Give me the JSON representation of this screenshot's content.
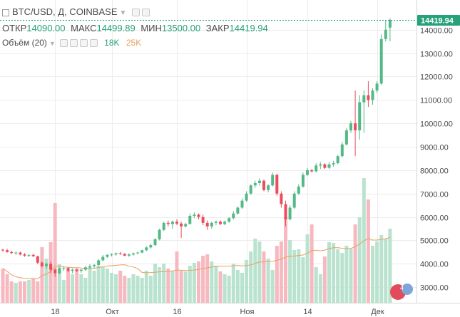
{
  "header": {
    "symbol": "BTC/USD, Д, COINBASE",
    "ohlc": [
      {
        "label": "ОТКР",
        "value": "14090.00"
      },
      {
        "label": "МАКС",
        "value": "14499.89"
      },
      {
        "label": "МИН",
        "value": "13500.00"
      },
      {
        "label": "ЗАКР",
        "value": "14419.94"
      }
    ],
    "volume_label": "Объём (20)",
    "volume_values": [
      "18K",
      "25K"
    ]
  },
  "colors": {
    "up": "#53b987",
    "down": "#eb4d5c",
    "vol_up": "#b9e3cf",
    "vol_down": "#f7b9c0",
    "ma": "#e8a063",
    "grid": "#ececec",
    "text": "#4a4a4a",
    "price_badge": "#26a17a"
  },
  "chart_data": {
    "type": "candlestick",
    "last_price": "14419.94",
    "y_ticks": [
      "3000.00",
      "4000.00",
      "5000.00",
      "6000.00",
      "7000.00",
      "8000.00",
      "9000.00",
      "10000.00",
      "11000.00",
      "12000.00",
      "13000.00",
      "14000.00"
    ],
    "x_ticks": [
      {
        "label": "18",
        "index": 12
      },
      {
        "label": "Окт",
        "index": 25
      },
      {
        "label": "16",
        "index": 40
      },
      {
        "label": "Ноя",
        "index": 56
      },
      {
        "label": "14",
        "index": 70
      },
      {
        "label": "Дек",
        "index": 86
      }
    ],
    "ylim": [
      2550,
      14600
    ],
    "candles": [
      [
        4600,
        4650,
        4520,
        4580
      ],
      [
        4580,
        4640,
        4480,
        4500
      ],
      [
        4500,
        4560,
        4420,
        4460
      ],
      [
        4460,
        4520,
        4380,
        4480
      ],
      [
        4480,
        4520,
        4360,
        4400
      ],
      [
        4400,
        4460,
        4300,
        4350
      ],
      [
        4350,
        4420,
        4280,
        4380
      ],
      [
        4380,
        4440,
        4300,
        4320
      ],
      [
        4320,
        4350,
        3980,
        4050
      ],
      [
        4050,
        4100,
        3850,
        3900
      ],
      [
        3900,
        4050,
        3800,
        4000
      ],
      [
        4000,
        4100,
        3600,
        3750
      ],
      [
        3750,
        3820,
        3450,
        3600
      ],
      [
        3600,
        3850,
        3550,
        3800
      ],
      [
        3800,
        3900,
        3700,
        3820
      ],
      [
        3820,
        3860,
        3650,
        3700
      ],
      [
        3700,
        3800,
        3600,
        3750
      ],
      [
        3750,
        3800,
        3650,
        3700
      ],
      [
        3700,
        3780,
        3620,
        3750
      ],
      [
        3750,
        3900,
        3700,
        3850
      ],
      [
        3850,
        3980,
        3780,
        3900
      ],
      [
        3900,
        4000,
        3800,
        3950
      ],
      [
        3950,
        4200,
        3900,
        4150
      ],
      [
        4150,
        4380,
        4100,
        4300
      ],
      [
        4300,
        4420,
        4250,
        4380
      ],
      [
        4380,
        4450,
        4320,
        4400
      ],
      [
        4400,
        4480,
        4350,
        4450
      ],
      [
        4450,
        4500,
        4380,
        4420
      ],
      [
        4420,
        4460,
        4320,
        4350
      ],
      [
        4350,
        4450,
        4300,
        4400
      ],
      [
        4400,
        4480,
        4350,
        4450
      ],
      [
        4450,
        4520,
        4400,
        4480
      ],
      [
        4480,
        4600,
        4450,
        4580
      ],
      [
        4580,
        4750,
        4550,
        4700
      ],
      [
        4700,
        4850,
        4650,
        4800
      ],
      [
        4800,
        5100,
        4750,
        5050
      ],
      [
        5050,
        5500,
        5000,
        5450
      ],
      [
        5450,
        5800,
        5400,
        5750
      ],
      [
        5750,
        5850,
        5600,
        5700
      ],
      [
        5700,
        5850,
        5500,
        5800
      ],
      [
        5800,
        5900,
        5650,
        5720
      ],
      [
        5720,
        5800,
        5100,
        5600
      ],
      [
        5600,
        5750,
        5550,
        5700
      ],
      [
        5700,
        6150,
        5680,
        6050
      ],
      [
        6050,
        6200,
        5950,
        6100
      ],
      [
        6100,
        6150,
        5900,
        6000
      ],
      [
        6000,
        6100,
        5650,
        5750
      ],
      [
        5750,
        5850,
        5450,
        5600
      ],
      [
        5600,
        5800,
        5500,
        5750
      ],
      [
        5750,
        5850,
        5650,
        5800
      ],
      [
        5800,
        5850,
        5650,
        5700
      ],
      [
        5700,
        5850,
        5650,
        5800
      ],
      [
        5800,
        6000,
        5750,
        5950
      ],
      [
        5950,
        6250,
        5900,
        6150
      ],
      [
        6150,
        6450,
        6100,
        6400
      ],
      [
        6400,
        6800,
        6350,
        6700
      ],
      [
        6700,
        7100,
        6650,
        7000
      ],
      [
        7000,
        7400,
        6950,
        7350
      ],
      [
        7350,
        7550,
        7250,
        7450
      ],
      [
        7450,
        7650,
        7350,
        7550
      ],
      [
        7550,
        7600,
        7100,
        7150
      ],
      [
        7150,
        7400,
        7050,
        7350
      ],
      [
        7350,
        7900,
        7300,
        7800
      ],
      [
        7800,
        7850,
        6900,
        7000
      ],
      [
        7000,
        7100,
        6400,
        6550
      ],
      [
        6550,
        6700,
        5600,
        5900
      ],
      [
        5900,
        6500,
        5850,
        6400
      ],
      [
        6400,
        7100,
        6350,
        7000
      ],
      [
        7000,
        7400,
        6950,
        7300
      ],
      [
        7300,
        7900,
        7250,
        7800
      ],
      [
        7800,
        8100,
        7750,
        8000
      ],
      [
        8000,
        8050,
        7900,
        7950
      ],
      [
        7950,
        8300,
        7900,
        8200
      ],
      [
        8200,
        8350,
        8050,
        8250
      ],
      [
        8250,
        8300,
        8050,
        8100
      ],
      [
        8100,
        8350,
        8050,
        8250
      ],
      [
        8250,
        8400,
        8150,
        8300
      ],
      [
        8300,
        8650,
        8250,
        8600
      ],
      [
        8600,
        9200,
        8550,
        9100
      ],
      [
        9100,
        9800,
        9050,
        9700
      ],
      [
        9700,
        10100,
        9600,
        10000
      ],
      [
        10000,
        11400,
        8600,
        9700
      ],
      [
        9700,
        11200,
        9300,
        10900
      ],
      [
        10900,
        11400,
        9600,
        11200
      ],
      [
        11200,
        11800,
        10700,
        11000
      ],
      [
        11000,
        11500,
        10800,
        11400
      ],
      [
        11400,
        11800,
        11300,
        11700
      ],
      [
        11700,
        13800,
        11650,
        13600
      ],
      [
        13600,
        14400,
        13500,
        14000
      ],
      [
        14090,
        14500,
        13500,
        14420
      ]
    ],
    "volume": [
      48,
      40,
      30,
      28,
      30,
      30,
      32,
      34,
      30,
      78,
      62,
      85,
      140,
      54,
      32,
      45,
      40,
      48,
      40,
      35,
      50,
      45,
      52,
      50,
      48,
      42,
      40,
      45,
      38,
      35,
      40,
      38,
      35,
      45,
      38,
      55,
      50,
      55,
      48,
      45,
      72,
      45,
      44,
      52,
      56,
      58,
      66,
      68,
      58,
      52,
      44,
      40,
      38,
      55,
      46,
      42,
      60,
      72,
      90,
      86,
      72,
      62,
      46,
      80,
      86,
      120,
      88,
      74,
      75,
      64,
      96,
      110,
      50,
      40,
      65,
      85,
      84,
      75,
      70,
      80,
      76,
      110,
      120,
      175,
      145,
      80,
      86,
      95,
      90,
      104
    ]
  }
}
